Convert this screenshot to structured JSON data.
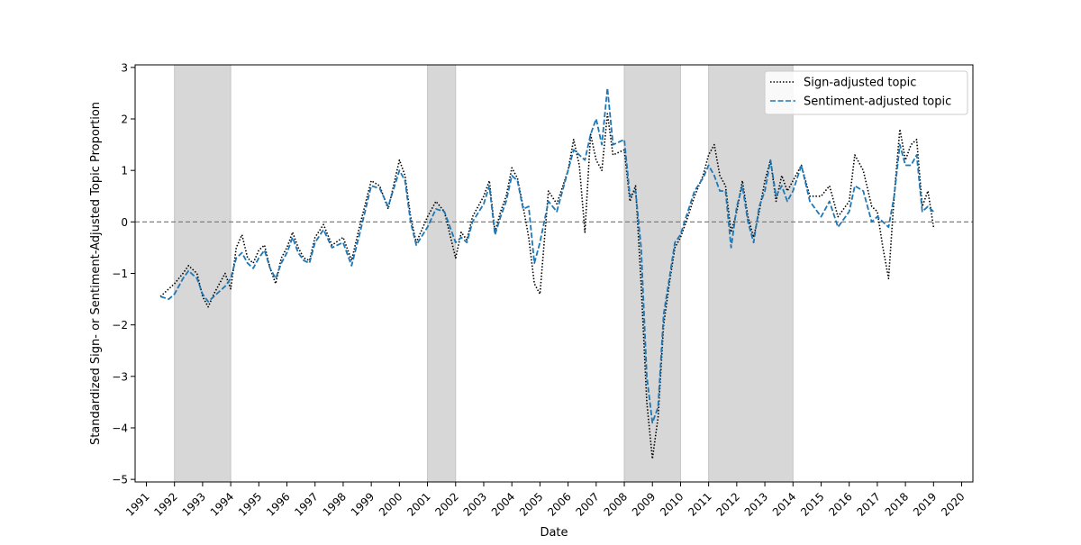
{
  "chart_data": {
    "type": "line",
    "xlabel": "Date",
    "ylabel": "Standardized Sign- or Sentiment-Adjusted Topic Proportion",
    "xlim": [
      1990.6,
      2020.4
    ],
    "ylim": [
      -5.05,
      3.05
    ],
    "x_ticks": [
      1991,
      1992,
      1993,
      1994,
      1995,
      1996,
      1997,
      1998,
      1999,
      2000,
      2001,
      2002,
      2003,
      2004,
      2005,
      2006,
      2007,
      2008,
      2009,
      2010,
      2011,
      2012,
      2013,
      2014,
      2015,
      2016,
      2017,
      2018,
      2019,
      2020
    ],
    "y_ticks": [
      3,
      2,
      1,
      0,
      -1,
      -2,
      -3,
      -4,
      -5
    ],
    "y_tick_labels": [
      "3",
      "2",
      "1",
      "0",
      "−1",
      "−2",
      "−3",
      "−4",
      "−5"
    ],
    "zero_line": 0,
    "shaded_periods": [
      [
        1992,
        1994
      ],
      [
        2001,
        2002
      ],
      [
        2008,
        2010
      ],
      [
        2011,
        2014
      ]
    ],
    "legend": {
      "position": "top-right",
      "entries": [
        {
          "label": "Sign-adjusted topic",
          "style": "dotted",
          "color": "#000000"
        },
        {
          "label": "Sentiment-adjusted topic",
          "style": "dashed",
          "color": "#1f77b4"
        }
      ]
    },
    "series": [
      {
        "name": "Sign-adjusted topic",
        "color": "#000000",
        "x": [
          1991.5,
          1991.8,
          1992.0,
          1992.3,
          1992.5,
          1992.8,
          1993.0,
          1993.2,
          1993.4,
          1993.6,
          1993.8,
          1994.0,
          1994.2,
          1994.4,
          1994.6,
          1994.8,
          1995.0,
          1995.2,
          1995.4,
          1995.6,
          1995.8,
          1996.0,
          1996.2,
          1996.4,
          1996.6,
          1996.8,
          1997.0,
          1997.3,
          1997.6,
          1998.0,
          1998.3,
          1998.6,
          1999.0,
          1999.3,
          1999.6,
          2000.0,
          2000.2,
          2000.4,
          2000.6,
          2001.0,
          2001.3,
          2001.6,
          2002.0,
          2002.2,
          2002.4,
          2002.6,
          2003.0,
          2003.2,
          2003.4,
          2003.6,
          2003.8,
          2004.0,
          2004.2,
          2004.4,
          2004.6,
          2004.8,
          2005.0,
          2005.3,
          2005.6,
          2006.0,
          2006.2,
          2006.4,
          2006.6,
          2006.8,
          2007.0,
          2007.2,
          2007.4,
          2007.6,
          2008.0,
          2008.2,
          2008.4,
          2008.6,
          2008.8,
          2009.0,
          2009.2,
          2009.4,
          2009.6,
          2009.8,
          2010.0,
          2010.2,
          2010.5,
          2010.8,
          2011.0,
          2011.2,
          2011.4,
          2011.6,
          2011.8,
          2012.0,
          2012.2,
          2012.4,
          2012.6,
          2012.8,
          2013.0,
          2013.2,
          2013.4,
          2013.6,
          2013.8,
          2014.0,
          2014.3,
          2014.6,
          2015.0,
          2015.3,
          2015.6,
          2016.0,
          2016.2,
          2016.5,
          2016.8,
          2017.0,
          2017.2,
          2017.4,
          2017.6,
          2017.8,
          2018.0,
          2018.2,
          2018.4,
          2018.6,
          2018.8,
          2019.0
        ],
        "values": [
          -1.45,
          -1.3,
          -1.2,
          -1.0,
          -0.85,
          -1.0,
          -1.45,
          -1.65,
          -1.4,
          -1.2,
          -1.0,
          -1.3,
          -0.5,
          -0.25,
          -0.7,
          -0.8,
          -0.55,
          -0.45,
          -0.9,
          -1.2,
          -0.7,
          -0.5,
          -0.2,
          -0.5,
          -0.7,
          -0.75,
          -0.3,
          -0.05,
          -0.45,
          -0.3,
          -0.75,
          -0.05,
          0.8,
          0.7,
          0.25,
          1.2,
          0.9,
          0.1,
          -0.4,
          0.1,
          0.4,
          0.2,
          -0.7,
          -0.2,
          -0.35,
          0.1,
          0.5,
          0.8,
          -0.2,
          0.2,
          0.5,
          1.05,
          0.85,
          0.3,
          -0.3,
          -1.2,
          -1.4,
          0.6,
          0.35,
          1.0,
          1.6,
          1.1,
          -0.2,
          1.7,
          1.2,
          1.0,
          2.1,
          1.3,
          1.4,
          0.4,
          0.7,
          -1.2,
          -3.5,
          -4.6,
          -3.8,
          -2.0,
          -1.2,
          -0.5,
          -0.3,
          0.0,
          0.5,
          0.9,
          1.3,
          1.5,
          0.9,
          0.7,
          -0.2,
          0.2,
          0.8,
          0.1,
          -0.3,
          0.2,
          0.8,
          1.2,
          0.4,
          0.9,
          0.6,
          0.8,
          1.1,
          0.5,
          0.5,
          0.7,
          0.1,
          0.4,
          1.3,
          1.0,
          0.3,
          0.2,
          -0.5,
          -1.1,
          0.5,
          1.8,
          1.2,
          1.5,
          1.6,
          0.3,
          0.6,
          -0.1
        ]
      },
      {
        "name": "Sentiment-adjusted topic",
        "color": "#1f77b4",
        "x": [
          1991.5,
          1991.8,
          1992.0,
          1992.3,
          1992.5,
          1992.8,
          1993.0,
          1993.2,
          1993.4,
          1993.6,
          1993.8,
          1994.0,
          1994.2,
          1994.4,
          1994.6,
          1994.8,
          1995.0,
          1995.2,
          1995.4,
          1995.6,
          1995.8,
          1996.0,
          1996.2,
          1996.4,
          1996.6,
          1996.8,
          1997.0,
          1997.3,
          1997.6,
          1998.0,
          1998.3,
          1998.6,
          1999.0,
          1999.3,
          1999.6,
          2000.0,
          2000.2,
          2000.4,
          2000.6,
          2001.0,
          2001.3,
          2001.6,
          2002.0,
          2002.2,
          2002.4,
          2002.6,
          2003.0,
          2003.2,
          2003.4,
          2003.6,
          2003.8,
          2004.0,
          2004.2,
          2004.4,
          2004.6,
          2004.8,
          2005.0,
          2005.3,
          2005.6,
          2006.0,
          2006.2,
          2006.4,
          2006.6,
          2006.8,
          2007.0,
          2007.2,
          2007.4,
          2007.6,
          2008.0,
          2008.2,
          2008.4,
          2008.6,
          2008.8,
          2009.0,
          2009.2,
          2009.4,
          2009.6,
          2009.8,
          2010.0,
          2010.2,
          2010.5,
          2010.8,
          2011.0,
          2011.2,
          2011.4,
          2011.6,
          2011.8,
          2012.0,
          2012.2,
          2012.4,
          2012.6,
          2012.8,
          2013.0,
          2013.2,
          2013.4,
          2013.6,
          2013.8,
          2014.0,
          2014.3,
          2014.6,
          2015.0,
          2015.3,
          2015.6,
          2016.0,
          2016.2,
          2016.5,
          2016.8,
          2017.0,
          2017.2,
          2017.4,
          2017.6,
          2017.8,
          2018.0,
          2018.2,
          2018.4,
          2018.6,
          2018.8,
          2019.0
        ],
        "values": [
          -1.45,
          -1.5,
          -1.4,
          -1.1,
          -0.95,
          -1.1,
          -1.4,
          -1.55,
          -1.45,
          -1.35,
          -1.25,
          -1.1,
          -0.7,
          -0.6,
          -0.8,
          -0.9,
          -0.7,
          -0.55,
          -0.9,
          -1.1,
          -0.8,
          -0.6,
          -0.3,
          -0.6,
          -0.75,
          -0.8,
          -0.4,
          -0.15,
          -0.5,
          -0.4,
          -0.85,
          -0.2,
          0.7,
          0.65,
          0.3,
          1.0,
          0.8,
          0.0,
          -0.45,
          -0.1,
          0.25,
          0.2,
          -0.4,
          -0.3,
          -0.4,
          0.0,
          0.35,
          0.7,
          -0.25,
          0.1,
          0.4,
          0.9,
          0.8,
          0.25,
          0.3,
          -0.8,
          -0.4,
          0.4,
          0.2,
          1.0,
          1.4,
          1.3,
          1.2,
          1.7,
          2.0,
          1.5,
          2.6,
          1.5,
          1.6,
          0.5,
          0.6,
          -0.5,
          -3.0,
          -3.9,
          -3.6,
          -1.8,
          -1.1,
          -0.4,
          -0.25,
          0.1,
          0.6,
          0.85,
          1.1,
          0.9,
          0.6,
          0.6,
          -0.5,
          0.3,
          0.7,
          0.0,
          -0.4,
          0.3,
          0.6,
          1.2,
          0.5,
          0.7,
          0.4,
          0.6,
          1.1,
          0.4,
          0.1,
          0.4,
          -0.1,
          0.2,
          0.7,
          0.6,
          0.0,
          0.1,
          0.0,
          -0.1,
          0.5,
          1.5,
          1.1,
          1.1,
          1.3,
          0.2,
          0.3,
          0.2
        ]
      }
    ]
  }
}
